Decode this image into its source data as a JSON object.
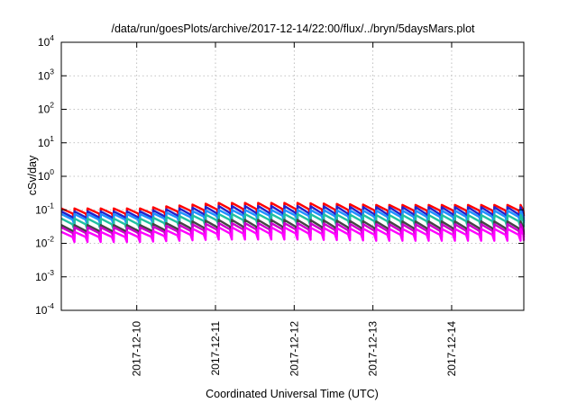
{
  "chart_data": {
    "type": "line",
    "title": "/data/run/goesPlots/archive/2017-12-14/22:00/flux/../bryn/5daysMars.plot",
    "xlabel": "Coordinated Universal Time (UTC)",
    "ylabel": "cSv/day",
    "yscale": "log",
    "ylim": [
      0.0001,
      10000
    ],
    "xlim": [
      "2017-12-09T01:00",
      "2017-12-14T22:00"
    ],
    "grid": true,
    "legend": "none",
    "y_ticks": [
      {
        "base": "10",
        "exp": "-4"
      },
      {
        "base": "10",
        "exp": "-3"
      },
      {
        "base": "10",
        "exp": "-2"
      },
      {
        "base": "10",
        "exp": "-1"
      },
      {
        "base": "10",
        "exp": "0"
      },
      {
        "base": "10",
        "exp": "1"
      },
      {
        "base": "10",
        "exp": "2"
      },
      {
        "base": "10",
        "exp": "3"
      },
      {
        "base": "10",
        "exp": "4"
      }
    ],
    "x_ticks": [
      "2017-12-10",
      "2017-12-11",
      "2017-12-12",
      "2017-12-13",
      "2017-12-14"
    ],
    "sawtooth_period_hours": 4,
    "series": [
      {
        "color": "#ff0000",
        "peak": [
          0.11,
          0.11,
          0.16,
          0.16,
          0.14,
          0.14
        ],
        "trough": [
          0.055,
          0.055,
          0.07,
          0.07,
          0.065,
          0.065
        ]
      },
      {
        "color": "#2222cc",
        "peak": [
          0.09,
          0.09,
          0.13,
          0.13,
          0.12,
          0.12
        ],
        "trough": [
          0.04,
          0.04,
          0.05,
          0.05,
          0.045,
          0.045
        ]
      },
      {
        "color": "#1e90ff",
        "peak": [
          0.075,
          0.075,
          0.1,
          0.1,
          0.095,
          0.095
        ],
        "trough": [
          0.035,
          0.035,
          0.045,
          0.045,
          0.04,
          0.04
        ]
      },
      {
        "color": "#20c0a0",
        "peak": [
          0.055,
          0.055,
          0.075,
          0.075,
          0.07,
          0.07
        ],
        "trough": [
          0.025,
          0.025,
          0.033,
          0.033,
          0.03,
          0.03
        ]
      },
      {
        "color": "#444444",
        "peak": [
          0.035,
          0.035,
          0.05,
          0.05,
          0.045,
          0.045
        ],
        "trough": [
          0.016,
          0.016,
          0.02,
          0.02,
          0.018,
          0.018
        ]
      },
      {
        "color": "#cc00cc",
        "peak": [
          0.03,
          0.03,
          0.04,
          0.04,
          0.037,
          0.037
        ],
        "trough": [
          0.014,
          0.014,
          0.017,
          0.017,
          0.015,
          0.015
        ]
      },
      {
        "color": "#ff00ff",
        "peak": [
          0.022,
          0.022,
          0.03,
          0.03,
          0.027,
          0.027
        ],
        "trough": [
          0.011,
          0.011,
          0.013,
          0.013,
          0.012,
          0.012
        ]
      }
    ]
  }
}
